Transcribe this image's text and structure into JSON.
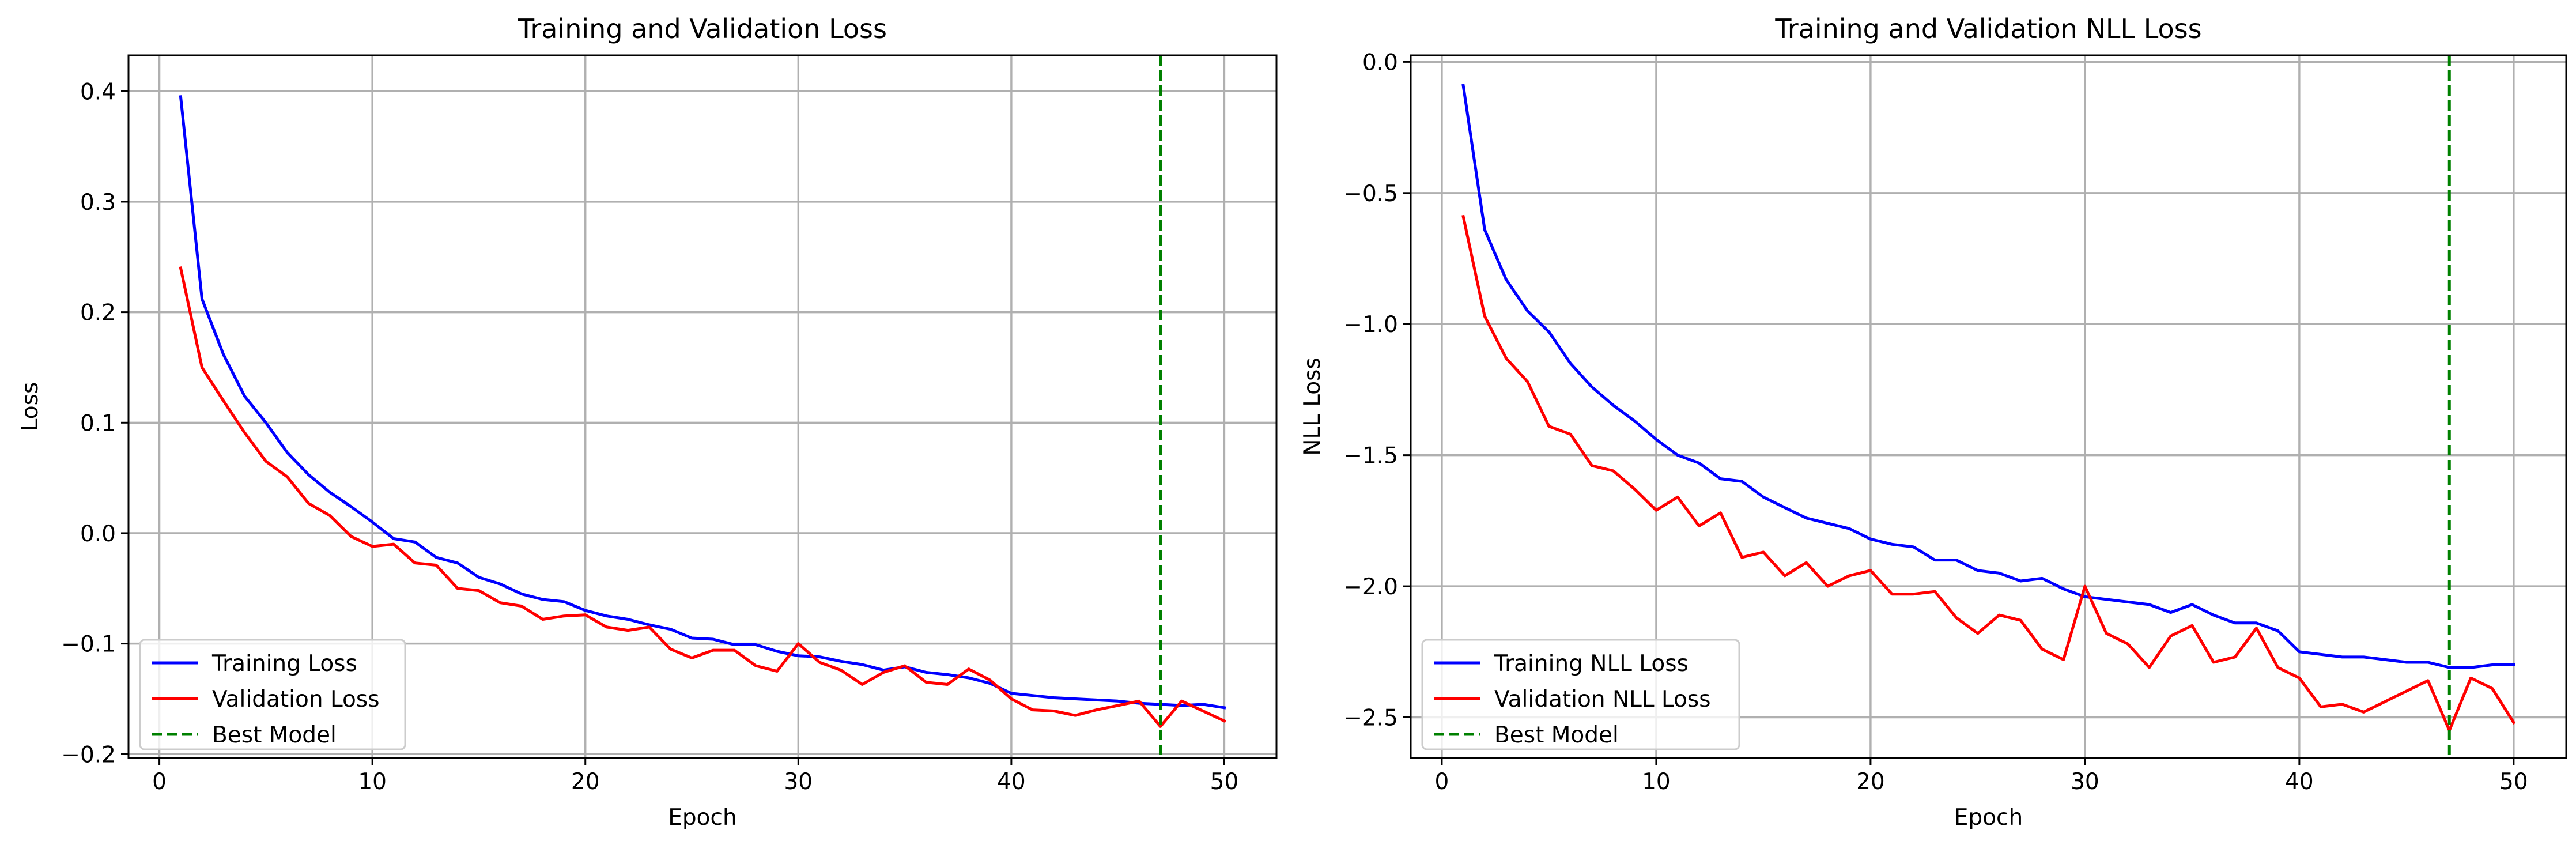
{
  "chart_data": [
    {
      "type": "line",
      "title": "Training and Validation Loss",
      "xlabel": "Epoch",
      "ylabel": "Loss",
      "xlim": [
        -1.45,
        52.45
      ],
      "ylim": [
        -0.2035,
        0.4325
      ],
      "xticks": [
        0,
        10,
        20,
        30,
        40,
        50
      ],
      "xtick_labels": [
        "0",
        "10",
        "20",
        "30",
        "40",
        "50"
      ],
      "yticks": [
        -0.2,
        -0.1,
        0.0,
        0.1,
        0.2,
        0.3,
        0.4
      ],
      "ytick_labels": [
        "−0.2",
        "−0.1",
        "0.0",
        "0.1",
        "0.2",
        "0.3",
        "0.4"
      ],
      "grid": true,
      "legend_position": "lower-left",
      "x": [
        1,
        2,
        3,
        4,
        5,
        6,
        7,
        8,
        9,
        10,
        11,
        12,
        13,
        14,
        15,
        16,
        17,
        18,
        19,
        20,
        21,
        22,
        23,
        24,
        25,
        26,
        27,
        28,
        29,
        30,
        31,
        32,
        33,
        34,
        35,
        36,
        37,
        38,
        39,
        40,
        41,
        42,
        43,
        44,
        45,
        46,
        47,
        48,
        49,
        50
      ],
      "series": [
        {
          "name": "Training Loss",
          "color": "#0000ff",
          "values": [
            0.395,
            0.212,
            0.162,
            0.124,
            0.1,
            0.073,
            0.053,
            0.037,
            0.024,
            0.01,
            -0.005,
            -0.008,
            -0.022,
            -0.027,
            -0.04,
            -0.046,
            -0.055,
            -0.06,
            -0.062,
            -0.07,
            -0.075,
            -0.078,
            -0.083,
            -0.087,
            -0.095,
            -0.096,
            -0.101,
            -0.101,
            -0.107,
            -0.111,
            -0.112,
            -0.116,
            -0.119,
            -0.124,
            -0.121,
            -0.126,
            -0.128,
            -0.131,
            -0.136,
            -0.145,
            -0.147,
            -0.149,
            -0.15,
            -0.151,
            -0.152,
            -0.154,
            -0.155,
            -0.156,
            -0.155,
            -0.158
          ]
        },
        {
          "name": "Validation Loss",
          "color": "#ff0000",
          "values": [
            0.24,
            0.15,
            0.12,
            0.091,
            0.065,
            0.051,
            0.027,
            0.016,
            -0.003,
            -0.012,
            -0.01,
            -0.027,
            -0.029,
            -0.05,
            -0.052,
            -0.063,
            -0.066,
            -0.078,
            -0.075,
            -0.074,
            -0.085,
            -0.088,
            -0.085,
            -0.105,
            -0.113,
            -0.106,
            -0.106,
            -0.12,
            -0.125,
            -0.1,
            -0.117,
            -0.124,
            -0.137,
            -0.126,
            -0.12,
            -0.135,
            -0.137,
            -0.123,
            -0.133,
            -0.15,
            -0.16,
            -0.161,
            -0.165,
            -0.16,
            -0.156,
            -0.152,
            -0.175,
            -0.152,
            -0.161,
            -0.17
          ]
        },
        {
          "name": "Best Model",
          "color": "#008000",
          "style": "dashed",
          "vertical_x": 47
        }
      ]
    },
    {
      "type": "line",
      "title": "Training and Validation NLL Loss",
      "xlabel": "Epoch",
      "ylabel": "NLL Loss",
      "xlim": [
        -1.45,
        52.45
      ],
      "ylim": [
        -2.655,
        0.025
      ],
      "xticks": [
        0,
        10,
        20,
        30,
        40,
        50
      ],
      "xtick_labels": [
        "0",
        "10",
        "20",
        "30",
        "40",
        "50"
      ],
      "yticks": [
        -2.5,
        -2.0,
        -1.5,
        -1.0,
        -0.5,
        0.0
      ],
      "ytick_labels": [
        "−2.5",
        "−2.0",
        "−1.5",
        "−1.0",
        "−0.5",
        "0.0"
      ],
      "grid": true,
      "legend_position": "lower-left",
      "x": [
        1,
        2,
        3,
        4,
        5,
        6,
        7,
        8,
        9,
        10,
        11,
        12,
        13,
        14,
        15,
        16,
        17,
        18,
        19,
        20,
        21,
        22,
        23,
        24,
        25,
        26,
        27,
        28,
        29,
        30,
        31,
        32,
        33,
        34,
        35,
        36,
        37,
        38,
        39,
        40,
        41,
        42,
        43,
        44,
        45,
        46,
        47,
        48,
        49,
        50
      ],
      "series": [
        {
          "name": "Training NLL Loss",
          "color": "#0000ff",
          "values": [
            -0.09,
            -0.64,
            -0.83,
            -0.95,
            -1.03,
            -1.15,
            -1.24,
            -1.31,
            -1.37,
            -1.44,
            -1.5,
            -1.53,
            -1.59,
            -1.6,
            -1.66,
            -1.7,
            -1.74,
            -1.76,
            -1.78,
            -1.82,
            -1.84,
            -1.85,
            -1.9,
            -1.9,
            -1.94,
            -1.95,
            -1.98,
            -1.97,
            -2.01,
            -2.04,
            -2.05,
            -2.06,
            -2.07,
            -2.1,
            -2.07,
            -2.11,
            -2.14,
            -2.14,
            -2.17,
            -2.25,
            -2.26,
            -2.27,
            -2.27,
            -2.28,
            -2.29,
            -2.29,
            -2.31,
            -2.31,
            -2.3,
            -2.3
          ]
        },
        {
          "name": "Validation NLL Loss",
          "color": "#ff0000",
          "values": [
            -0.59,
            -0.97,
            -1.13,
            -1.22,
            -1.39,
            -1.42,
            -1.54,
            -1.56,
            -1.63,
            -1.71,
            -1.66,
            -1.77,
            -1.72,
            -1.89,
            -1.87,
            -1.96,
            -1.91,
            -2.0,
            -1.96,
            -1.94,
            -2.03,
            -2.03,
            -2.02,
            -2.12,
            -2.18,
            -2.11,
            -2.13,
            -2.24,
            -2.28,
            -2.0,
            -2.18,
            -2.22,
            -2.31,
            -2.19,
            -2.15,
            -2.29,
            -2.27,
            -2.16,
            -2.31,
            -2.35,
            -2.46,
            -2.45,
            -2.48,
            -2.44,
            -2.4,
            -2.36,
            -2.55,
            -2.35,
            -2.39,
            -2.52
          ]
        },
        {
          "name": "Best Model",
          "color": "#008000",
          "style": "dashed",
          "vertical_x": 47
        }
      ]
    }
  ]
}
